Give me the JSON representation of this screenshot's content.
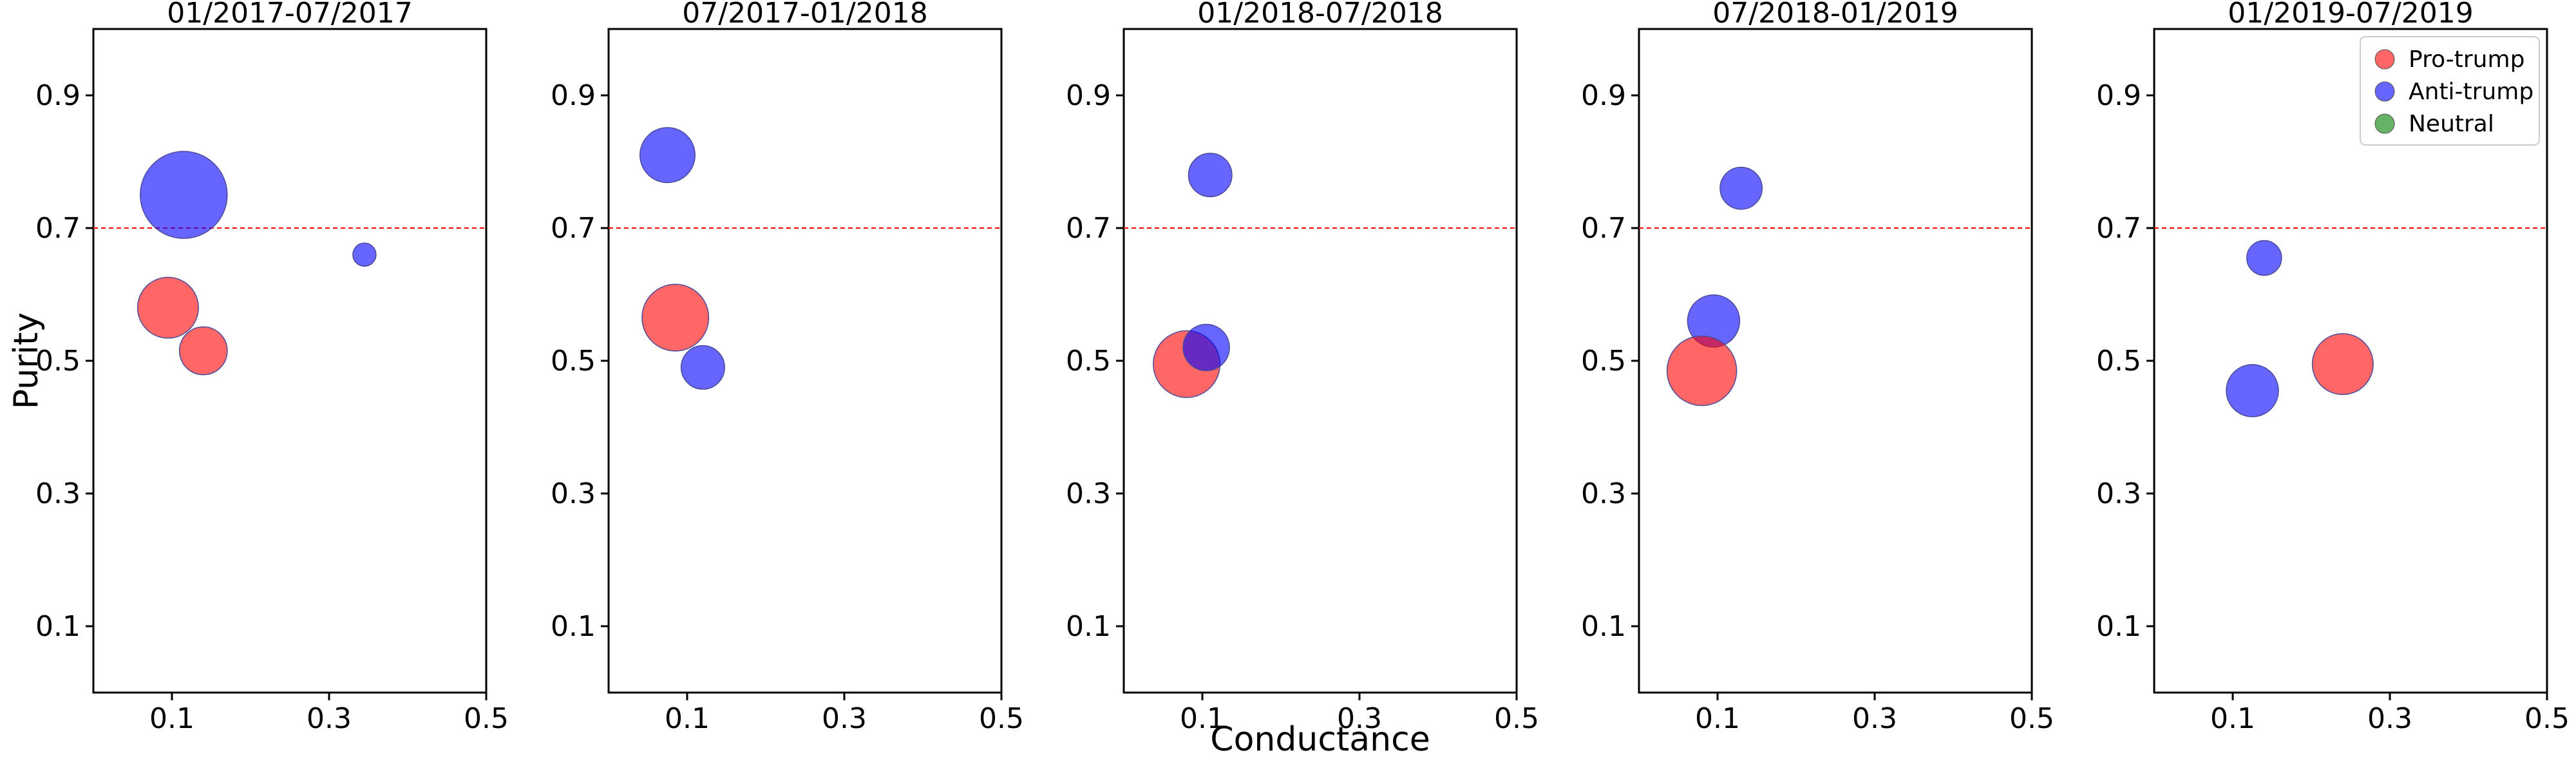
{
  "chart_data": {
    "type": "scatter",
    "ylabel": "Purity",
    "xlabel": "Conductance",
    "xlim": [
      0.0,
      0.5
    ],
    "ylim": [
      0.0,
      1.0
    ],
    "xticks": [
      "0.1",
      "0.3",
      "0.5"
    ],
    "xtick_values": [
      0.1,
      0.3,
      0.5
    ],
    "yticks": [
      "0.1",
      "0.3",
      "0.5",
      "0.7",
      "0.9"
    ],
    "ytick_values": [
      0.1,
      0.3,
      0.5,
      0.7,
      0.9
    ],
    "reference_line": {
      "y": 0.7,
      "color": "#ff0000",
      "style": "dashed"
    },
    "legend": {
      "location": "top-right",
      "entries": [
        {
          "label": "Pro-trump",
          "color": "#ff0000"
        },
        {
          "label": "Anti-trump",
          "color": "#0000ff"
        },
        {
          "label": "Neutral",
          "color": "#008000"
        }
      ]
    },
    "panels": [
      {
        "title": "01/2017-07/2017",
        "points": [
          {
            "group": "Anti-trump",
            "x": 0.115,
            "y": 0.75,
            "size": 3.0
          },
          {
            "group": "Anti-trump",
            "x": 0.345,
            "y": 0.66,
            "size": 0.8
          },
          {
            "group": "Pro-trump",
            "x": 0.095,
            "y": 0.58,
            "size": 2.1
          },
          {
            "group": "Pro-trump",
            "x": 0.14,
            "y": 0.515,
            "size": 1.65
          }
        ]
      },
      {
        "title": "07/2017-01/2018",
        "points": [
          {
            "group": "Anti-trump",
            "x": 0.075,
            "y": 0.81,
            "size": 1.9
          },
          {
            "group": "Pro-trump",
            "x": 0.085,
            "y": 0.565,
            "size": 2.3
          },
          {
            "group": "Anti-trump",
            "x": 0.12,
            "y": 0.49,
            "size": 1.5
          }
        ]
      },
      {
        "title": "01/2018-07/2018",
        "points": [
          {
            "group": "Anti-trump",
            "x": 0.11,
            "y": 0.78,
            "size": 1.5
          },
          {
            "group": "Pro-trump",
            "x": 0.08,
            "y": 0.495,
            "size": 2.3
          },
          {
            "group": "Anti-trump",
            "x": 0.105,
            "y": 0.52,
            "size": 1.6
          }
        ]
      },
      {
        "title": "07/2018-01/2019",
        "points": [
          {
            "group": "Anti-trump",
            "x": 0.13,
            "y": 0.76,
            "size": 1.45
          },
          {
            "group": "Anti-trump",
            "x": 0.095,
            "y": 0.56,
            "size": 1.8
          },
          {
            "group": "Pro-trump",
            "x": 0.08,
            "y": 0.485,
            "size": 2.4
          }
        ]
      },
      {
        "title": "01/2019-07/2019",
        "points": [
          {
            "group": "Anti-trump",
            "x": 0.14,
            "y": 0.655,
            "size": 1.2
          },
          {
            "group": "Pro-trump",
            "x": 0.24,
            "y": 0.495,
            "size": 2.1
          },
          {
            "group": "Anti-trump",
            "x": 0.125,
            "y": 0.455,
            "size": 1.8
          }
        ]
      }
    ]
  }
}
